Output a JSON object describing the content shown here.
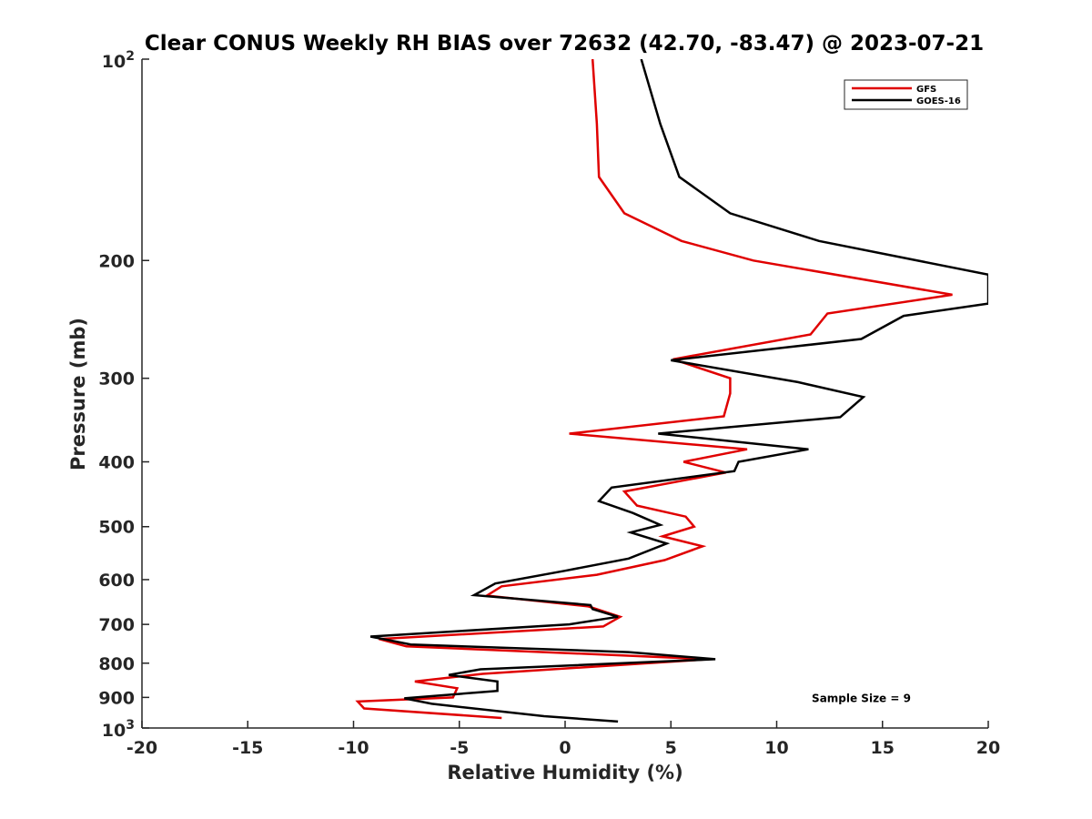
{
  "chart_data": {
    "type": "line",
    "title": "Clear CONUS Weekly RH BIAS over 72632 (42.70, -83.47) @ 2023-07-21",
    "xlabel": "Relative Humidity (%)",
    "ylabel": "Pressure (mb)",
    "xlim": [
      -20,
      20
    ],
    "ylim": [
      100,
      1000
    ],
    "y_scale": "log",
    "y_reversed": true,
    "grid": false,
    "legend_position": "top-right",
    "x_ticks": [
      "-20",
      "-15",
      "-10",
      "-5",
      "0",
      "5",
      "10",
      "15",
      "20"
    ],
    "y_ticks": [
      {
        "value": 100,
        "base": "10",
        "exp": "2"
      },
      {
        "value": 200,
        "label": "200"
      },
      {
        "value": 300,
        "label": "300"
      },
      {
        "value": 400,
        "label": "400"
      },
      {
        "value": 500,
        "label": "500"
      },
      {
        "value": 600,
        "label": "600"
      },
      {
        "value": 700,
        "label": "700"
      },
      {
        "value": 800,
        "label": "800"
      },
      {
        "value": 900,
        "label": "900"
      },
      {
        "value": 1000,
        "base": "10",
        "exp": "3"
      }
    ],
    "series": [
      {
        "name": "GFS",
        "color": "#e00000",
        "points": [
          [
            1.3,
            100
          ],
          [
            1.5,
            125
          ],
          [
            1.6,
            150
          ],
          [
            2.8,
            170
          ],
          [
            5.5,
            187
          ],
          [
            8.9,
            200
          ],
          [
            18.3,
            225
          ],
          [
            12.4,
            240
          ],
          [
            11.6,
            258
          ],
          [
            5.1,
            281
          ],
          [
            7.8,
            300
          ],
          [
            7.8,
            316
          ],
          [
            7.5,
            342
          ],
          [
            0.2,
            363
          ],
          [
            8.6,
            383
          ],
          [
            5.6,
            400
          ],
          [
            7.6,
            415
          ],
          [
            2.8,
            443
          ],
          [
            3.4,
            465
          ],
          [
            5.7,
            483
          ],
          [
            6.1,
            500
          ],
          [
            4.6,
            517
          ],
          [
            6.5,
            535
          ],
          [
            4.7,
            561
          ],
          [
            1.5,
            590
          ],
          [
            -3,
            614
          ],
          [
            -3.7,
            634
          ],
          [
            1.1,
            658
          ],
          [
            2.6,
            682
          ],
          [
            1.8,
            705
          ],
          [
            -8.8,
            736
          ],
          [
            -7.5,
            755
          ],
          [
            3.2,
            780
          ],
          [
            6.8,
            789
          ],
          [
            -3.9,
            830
          ],
          [
            -7.1,
            852
          ],
          [
            -5.1,
            872
          ],
          [
            -5.3,
            900
          ],
          [
            -9.8,
            913
          ],
          [
            -9.5,
            935
          ],
          [
            -3,
            966
          ]
        ]
      },
      {
        "name": "GOES-16",
        "color": "#000000",
        "points": [
          [
            3.6,
            100
          ],
          [
            4.5,
            125
          ],
          [
            5.4,
            150
          ],
          [
            7.8,
            170
          ],
          [
            12,
            187
          ],
          [
            20,
            210
          ],
          [
            20,
            232
          ],
          [
            16,
            242
          ],
          [
            14,
            262
          ],
          [
            5,
            282
          ],
          [
            11,
            304
          ],
          [
            14.1,
            320
          ],
          [
            13,
            343
          ],
          [
            4.4,
            363
          ],
          [
            11.5,
            383
          ],
          [
            8.2,
            400
          ],
          [
            8,
            413
          ],
          [
            2.2,
            437
          ],
          [
            1.6,
            458
          ],
          [
            3.2,
            477
          ],
          [
            4.5,
            497
          ],
          [
            3.1,
            510
          ],
          [
            4.8,
            530
          ],
          [
            3,
            558
          ],
          [
            0,
            582
          ],
          [
            -3.3,
            608
          ],
          [
            -4.3,
            633
          ],
          [
            1.2,
            655
          ],
          [
            1.3,
            664
          ],
          [
            2.5,
            682
          ],
          [
            0.2,
            700
          ],
          [
            -9.2,
            730
          ],
          [
            -7.3,
            750
          ],
          [
            3,
            770
          ],
          [
            7.1,
            789
          ],
          [
            -4,
            817
          ],
          [
            -5.5,
            833
          ],
          [
            -3.2,
            852
          ],
          [
            -3.2,
            880
          ],
          [
            -7.6,
            903
          ],
          [
            -6.3,
            920
          ],
          [
            -1,
            960
          ],
          [
            2.5,
            978
          ]
        ]
      }
    ],
    "annotations": [
      {
        "text": "Sample Size = 9",
        "x": 14,
        "y": 900
      }
    ]
  }
}
